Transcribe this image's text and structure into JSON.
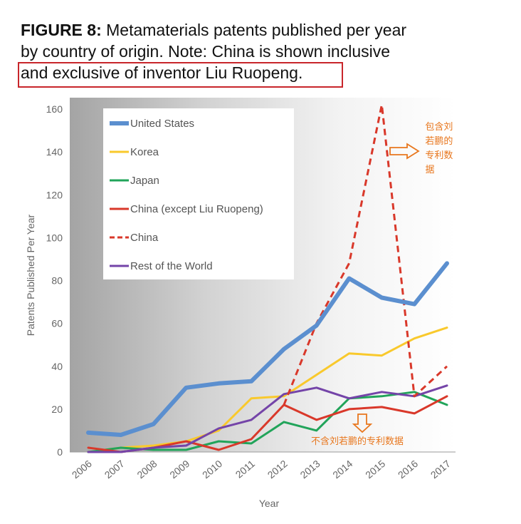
{
  "caption": {
    "label": "FIGURE 8:",
    "line1": "Metamaterials patents published per year",
    "line2": "by country of origin. Note: China is shown inclusive",
    "line3": "and exclusive of inventor Liu Ruopeng."
  },
  "chart_data": {
    "type": "line",
    "x": [
      "2006",
      "2007",
      "2008",
      "2009",
      "2010",
      "2011",
      "2012",
      "2013",
      "2014",
      "2015",
      "2016",
      "2017"
    ],
    "xlabel": "Year",
    "ylabel": "Patents Published Per Year",
    "ylim": [
      0,
      160
    ],
    "yticks": [
      0,
      20,
      40,
      60,
      80,
      100,
      120,
      140,
      160
    ],
    "grid": false,
    "legend_position": "top-left",
    "series": [
      {
        "name": "United States",
        "color": "#5b8fcf",
        "style": "solid",
        "width": 6,
        "values": [
          9,
          8,
          13,
          30,
          32,
          33,
          48,
          59,
          81,
          72,
          69,
          88
        ]
      },
      {
        "name": "Korea",
        "color": "#f9c92c",
        "style": "solid",
        "width": 3,
        "values": [
          0,
          2,
          3,
          5,
          10,
          25,
          26,
          36,
          46,
          45,
          53,
          58
        ]
      },
      {
        "name": "Japan",
        "color": "#21a45a",
        "style": "solid",
        "width": 3,
        "values": [
          0,
          2,
          1,
          1,
          5,
          4,
          14,
          10,
          25,
          26,
          28,
          22
        ]
      },
      {
        "name": "China (except Liu Ruopeng)",
        "color": "#d9382a",
        "style": "solid",
        "width": 3,
        "values": [
          2,
          0,
          2,
          5,
          1,
          6,
          22,
          15,
          20,
          21,
          18,
          26
        ]
      },
      {
        "name": "China",
        "color": "#d9382a",
        "style": "dashed",
        "width": 3,
        "values": [
          null,
          null,
          null,
          null,
          null,
          null,
          22,
          60,
          88,
          162,
          26,
          40
        ]
      },
      {
        "name": "Rest of the World",
        "color": "#7444a8",
        "style": "solid",
        "width": 3,
        "values": [
          0,
          0,
          2,
          3,
          11,
          15,
          27,
          30,
          25,
          28,
          26,
          31
        ]
      }
    ],
    "annotations": [
      {
        "text": "包含刘若鹏的专利数据",
        "lines": [
          "包含刘",
          "若鹏的",
          "专利数",
          "据"
        ],
        "color": "#e8771e",
        "arrow": "right"
      },
      {
        "text": "不含刘若鹏的专利数据",
        "color": "#e8771e",
        "arrow": "down"
      }
    ]
  }
}
